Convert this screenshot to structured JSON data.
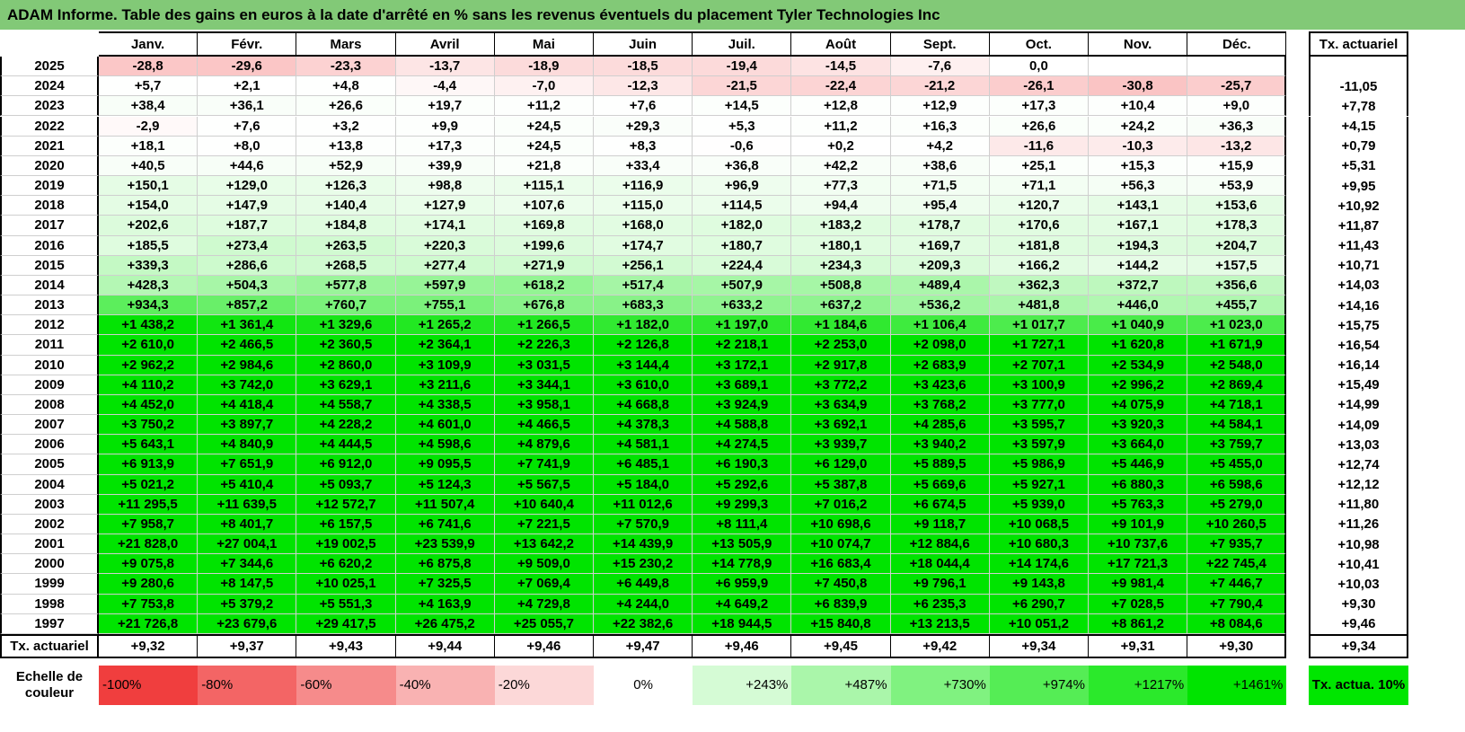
{
  "title": "ADAM Informe. Table des gains en euros à la date d'arrêté en % sans les revenus éventuels du placement Tyler Technologies Inc",
  "header": [
    "Janv.",
    "Févr.",
    "Mars",
    "Avril",
    "Mai",
    "Juin",
    "Juil.",
    "Août",
    "Sept.",
    "Oct.",
    "Nov.",
    "Déc."
  ],
  "tx_header": "Tx. actuariel",
  "rows": [
    {
      "year": "2025",
      "cells": [
        "-28,8",
        "-29,6",
        "-23,3",
        "-13,7",
        "-18,9",
        "-18,5",
        "-19,4",
        "-14,5",
        "-7,6",
        "0,0",
        null,
        null
      ],
      "tx": null
    },
    {
      "year": "2024",
      "cells": [
        "+5,7",
        "+2,1",
        "+4,8",
        "-4,4",
        "-7,0",
        "-12,3",
        "-21,5",
        "-22,4",
        "-21,2",
        "-26,1",
        "-30,8",
        "-25,7"
      ],
      "tx": "-11,05"
    },
    {
      "year": "2023",
      "cells": [
        "+38,4",
        "+36,1",
        "+26,6",
        "+19,7",
        "+11,2",
        "+7,6",
        "+14,5",
        "+12,8",
        "+12,9",
        "+17,3",
        "+10,4",
        "+9,0"
      ],
      "tx": "+7,78"
    },
    {
      "year": "2022",
      "cells": [
        "-2,9",
        "+7,6",
        "+3,2",
        "+9,9",
        "+24,5",
        "+29,3",
        "+5,3",
        "+11,2",
        "+16,3",
        "+26,6",
        "+24,2",
        "+36,3"
      ],
      "tx": "+4,15"
    },
    {
      "year": "2021",
      "cells": [
        "+18,1",
        "+8,0",
        "+13,8",
        "+17,3",
        "+24,5",
        "+8,3",
        "-0,6",
        "+0,2",
        "+4,2",
        "-11,6",
        "-10,3",
        "-13,2"
      ],
      "tx": "+0,79"
    },
    {
      "year": "2020",
      "cells": [
        "+40,5",
        "+44,6",
        "+52,9",
        "+39,9",
        "+21,8",
        "+33,4",
        "+36,8",
        "+42,2",
        "+38,6",
        "+25,1",
        "+15,3",
        "+15,9"
      ],
      "tx": "+5,31"
    },
    {
      "year": "2019",
      "cells": [
        "+150,1",
        "+129,0",
        "+126,3",
        "+98,8",
        "+115,1",
        "+116,9",
        "+96,9",
        "+77,3",
        "+71,5",
        "+71,1",
        "+56,3",
        "+53,9"
      ],
      "tx": "+9,95"
    },
    {
      "year": "2018",
      "cells": [
        "+154,0",
        "+147,9",
        "+140,4",
        "+127,9",
        "+107,6",
        "+115,0",
        "+114,5",
        "+94,4",
        "+95,4",
        "+120,7",
        "+143,1",
        "+153,6"
      ],
      "tx": "+10,92"
    },
    {
      "year": "2017",
      "cells": [
        "+202,6",
        "+187,7",
        "+184,8",
        "+174,1",
        "+169,8",
        "+168,0",
        "+182,0",
        "+183,2",
        "+178,7",
        "+170,6",
        "+167,1",
        "+178,3"
      ],
      "tx": "+11,87"
    },
    {
      "year": "2016",
      "cells": [
        "+185,5",
        "+273,4",
        "+263,5",
        "+220,3",
        "+199,6",
        "+174,7",
        "+180,7",
        "+180,1",
        "+169,7",
        "+181,8",
        "+194,3",
        "+204,7"
      ],
      "tx": "+11,43"
    },
    {
      "year": "2015",
      "cells": [
        "+339,3",
        "+286,6",
        "+268,5",
        "+277,4",
        "+271,9",
        "+256,1",
        "+224,4",
        "+234,3",
        "+209,3",
        "+166,2",
        "+144,2",
        "+157,5"
      ],
      "tx": "+10,71"
    },
    {
      "year": "2014",
      "cells": [
        "+428,3",
        "+504,3",
        "+577,8",
        "+597,9",
        "+618,2",
        "+517,4",
        "+507,9",
        "+508,8",
        "+489,4",
        "+362,3",
        "+372,7",
        "+356,6"
      ],
      "tx": "+14,03"
    },
    {
      "year": "2013",
      "cells": [
        "+934,3",
        "+857,2",
        "+760,7",
        "+755,1",
        "+676,8",
        "+683,3",
        "+633,2",
        "+637,2",
        "+536,2",
        "+481,8",
        "+446,0",
        "+455,7"
      ],
      "tx": "+14,16"
    },
    {
      "year": "2012",
      "cells": [
        "+1 438,2",
        "+1 361,4",
        "+1 329,6",
        "+1 265,2",
        "+1 266,5",
        "+1 182,0",
        "+1 197,0",
        "+1 184,6",
        "+1 106,4",
        "+1 017,7",
        "+1 040,9",
        "+1 023,0"
      ],
      "tx": "+15,75"
    },
    {
      "year": "2011",
      "cells": [
        "+2 610,0",
        "+2 466,5",
        "+2 360,5",
        "+2 364,1",
        "+2 226,3",
        "+2 126,8",
        "+2 218,1",
        "+2 253,0",
        "+2 098,0",
        "+1 727,1",
        "+1 620,8",
        "+1 671,9"
      ],
      "tx": "+16,54"
    },
    {
      "year": "2010",
      "cells": [
        "+2 962,2",
        "+2 984,6",
        "+2 860,0",
        "+3 109,9",
        "+3 031,5",
        "+3 144,4",
        "+3 172,1",
        "+2 917,8",
        "+2 683,9",
        "+2 707,1",
        "+2 534,9",
        "+2 548,0"
      ],
      "tx": "+16,14"
    },
    {
      "year": "2009",
      "cells": [
        "+4 110,2",
        "+3 742,0",
        "+3 629,1",
        "+3 211,6",
        "+3 344,1",
        "+3 610,0",
        "+3 689,1",
        "+3 772,2",
        "+3 423,6",
        "+3 100,9",
        "+2 996,2",
        "+2 869,4"
      ],
      "tx": "+15,49"
    },
    {
      "year": "2008",
      "cells": [
        "+4 452,0",
        "+4 418,4",
        "+4 558,7",
        "+4 338,5",
        "+3 958,1",
        "+4 668,8",
        "+3 924,9",
        "+3 634,9",
        "+3 768,2",
        "+3 777,0",
        "+4 075,9",
        "+4 718,1"
      ],
      "tx": "+14,99"
    },
    {
      "year": "2007",
      "cells": [
        "+3 750,2",
        "+3 897,7",
        "+4 228,2",
        "+4 601,0",
        "+4 466,5",
        "+4 378,3",
        "+4 588,8",
        "+3 692,1",
        "+4 285,6",
        "+3 595,7",
        "+3 920,3",
        "+4 584,1"
      ],
      "tx": "+14,09"
    },
    {
      "year": "2006",
      "cells": [
        "+5 643,1",
        "+4 840,9",
        "+4 444,5",
        "+4 598,6",
        "+4 879,6",
        "+4 581,1",
        "+4 274,5",
        "+3 939,7",
        "+3 940,2",
        "+3 597,9",
        "+3 664,0",
        "+3 759,7"
      ],
      "tx": "+13,03"
    },
    {
      "year": "2005",
      "cells": [
        "+6 913,9",
        "+7 651,9",
        "+6 912,0",
        "+9 095,5",
        "+7 741,9",
        "+6 485,1",
        "+6 190,3",
        "+6 129,0",
        "+5 889,5",
        "+5 986,9",
        "+5 446,9",
        "+5 455,0"
      ],
      "tx": "+12,74"
    },
    {
      "year": "2004",
      "cells": [
        "+5 021,2",
        "+5 410,4",
        "+5 093,7",
        "+5 124,3",
        "+5 567,5",
        "+5 184,0",
        "+5 292,6",
        "+5 387,8",
        "+5 669,6",
        "+5 927,1",
        "+6 880,3",
        "+6 598,6"
      ],
      "tx": "+12,12"
    },
    {
      "year": "2003",
      "cells": [
        "+11 295,5",
        "+11 639,5",
        "+12 572,7",
        "+11 507,4",
        "+10 640,4",
        "+11 012,6",
        "+9 299,3",
        "+7 016,2",
        "+6 674,5",
        "+5 939,0",
        "+5 763,3",
        "+5 279,0"
      ],
      "tx": "+11,80"
    },
    {
      "year": "2002",
      "cells": [
        "+7 958,7",
        "+8 401,7",
        "+6 157,5",
        "+6 741,6",
        "+7 221,5",
        "+7 570,9",
        "+8 111,4",
        "+10 698,6",
        "+9 118,7",
        "+10 068,5",
        "+9 101,9",
        "+10 260,5"
      ],
      "tx": "+11,26"
    },
    {
      "year": "2001",
      "cells": [
        "+21 828,0",
        "+27 004,1",
        "+19 002,5",
        "+23 539,9",
        "+13 642,2",
        "+14 439,9",
        "+13 505,9",
        "+10 074,7",
        "+12 884,6",
        "+10 680,3",
        "+10 737,6",
        "+7 935,7"
      ],
      "tx": "+10,98"
    },
    {
      "year": "2000",
      "cells": [
        "+9 075,8",
        "+7 344,6",
        "+6 620,2",
        "+6 875,8",
        "+9 509,0",
        "+15 230,2",
        "+14 778,9",
        "+16 683,4",
        "+18 044,4",
        "+14 174,6",
        "+17 721,3",
        "+22 745,4"
      ],
      "tx": "+10,41"
    },
    {
      "year": "1999",
      "cells": [
        "+9 280,6",
        "+8 147,5",
        "+10 025,1",
        "+7 325,5",
        "+7 069,4",
        "+6 449,8",
        "+6 959,9",
        "+7 450,8",
        "+9 796,1",
        "+9 143,8",
        "+9 981,4",
        "+7 446,7"
      ],
      "tx": "+10,03"
    },
    {
      "year": "1998",
      "cells": [
        "+7 753,8",
        "+5 379,2",
        "+5 551,3",
        "+4 163,9",
        "+4 729,8",
        "+4 244,0",
        "+4 649,2",
        "+6 839,9",
        "+6 235,3",
        "+6 290,7",
        "+7 028,5",
        "+7 790,4"
      ],
      "tx": "+9,30"
    },
    {
      "year": "1997",
      "cells": [
        "+21 726,8",
        "+23 679,6",
        "+29 417,5",
        "+26 475,2",
        "+25 055,7",
        "+22 382,6",
        "+18 944,5",
        "+15 840,8",
        "+13 213,5",
        "+10 051,2",
        "+8 861,2",
        "+8 084,6"
      ],
      "tx": "+9,46"
    }
  ],
  "footer": {
    "label": "Tx. actuariel",
    "cells": [
      "+9,32",
      "+9,37",
      "+9,43",
      "+9,44",
      "+9,46",
      "+9,47",
      "+9,46",
      "+9,45",
      "+9,42",
      "+9,34",
      "+9,31",
      "+9,30"
    ],
    "tx": "+9,34"
  },
  "legend": {
    "label": "Echelle de couleur",
    "steps": [
      "-100%",
      "-80%",
      "-60%",
      "-40%",
      "-20%",
      "0%",
      "+243%",
      "+487%",
      "+730%",
      "+974%",
      "+1217%",
      "+1461%"
    ],
    "tx": "Tx. actua. 10%"
  }
}
